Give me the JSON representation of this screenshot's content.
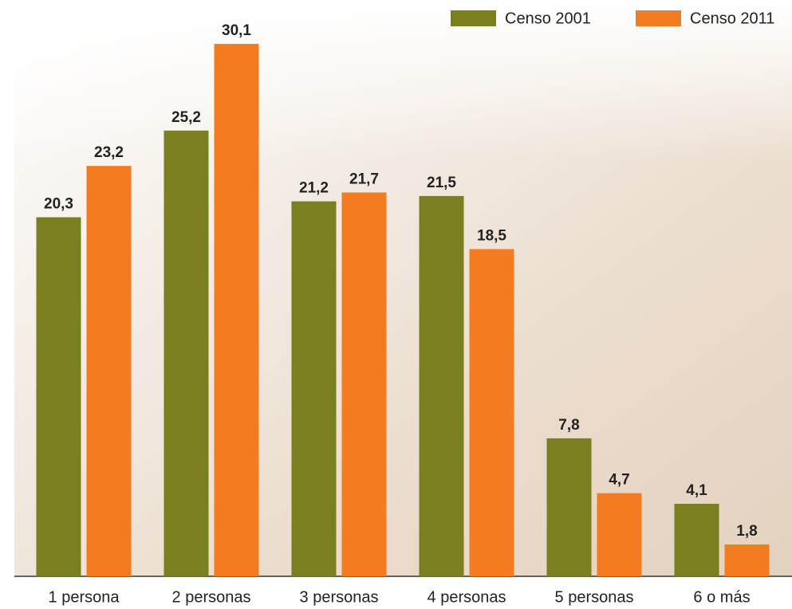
{
  "chart_data": {
    "type": "bar",
    "categories": [
      "1 persona",
      "2 personas",
      "3 personas",
      "4 personas",
      "5 personas",
      "6 o más"
    ],
    "series": [
      {
        "name": "Censo 2001",
        "color": "#7a7f1f",
        "values": [
          20.3,
          25.2,
          21.2,
          21.5,
          7.8,
          4.1
        ],
        "value_labels": [
          "20,3",
          "25,2",
          "21,2",
          "21,5",
          "7,8",
          "4,1"
        ]
      },
      {
        "name": "Censo 2011",
        "color": "#f47b20",
        "values": [
          23.2,
          30.1,
          21.7,
          18.5,
          4.7,
          1.8
        ],
        "value_labels": [
          "23,2",
          "30,1",
          "21,7",
          "18,5",
          "4,7",
          "1,8"
        ]
      }
    ]
  }
}
